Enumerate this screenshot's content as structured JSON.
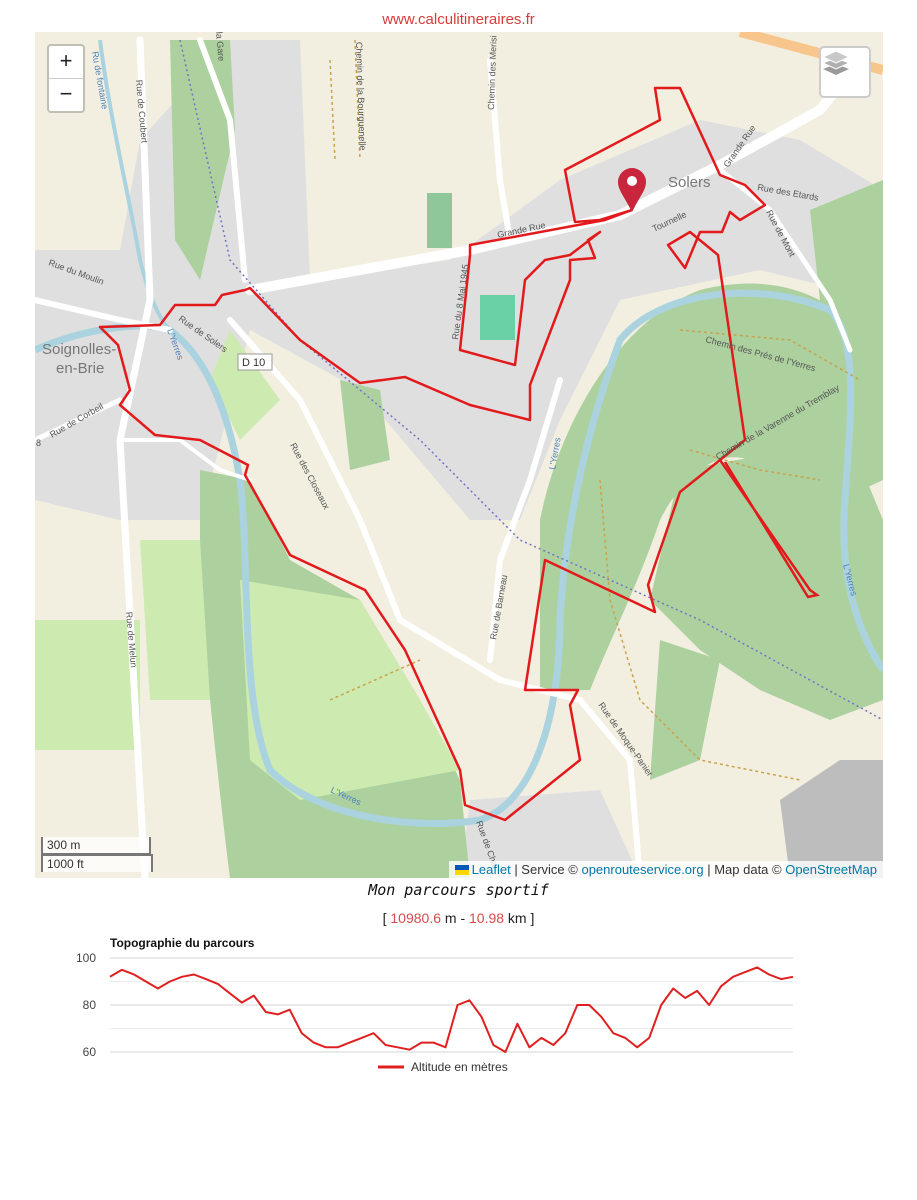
{
  "header": {
    "site": "www.calculitineraires.fr"
  },
  "map": {
    "controls": {
      "zoom_in": "+",
      "zoom_out": "−",
      "layers_icon": "layers-icon"
    },
    "scale": {
      "metric": "300 m",
      "imperial": "1000 ft"
    },
    "attribution": {
      "leaflet": "Leaflet",
      "sep1": " | Service © ",
      "service": "openrouteservice.org",
      "sep2": " | Map data © ",
      "osm": "OpenStreetMap"
    },
    "places": {
      "solers": "Solers",
      "soignolles1": "Soignolles-",
      "soignolles2": "en-Brie"
    },
    "streets": {
      "fontaine": "Ru de fontaine",
      "coubert": "Rue de Coubert",
      "gare": "la Gare",
      "bourguenelle": "Chemin de la Bourguenelle",
      "merisiers": "Chemin des Merisi",
      "grande_rue": "Grande Rue",
      "grande_rue2": "Grande Rue",
      "etards": "Rue des Etards",
      "mont": "Rue de Mont",
      "tournelle": "Tournelle",
      "moulin": "Rue du Moulin",
      "solers_rue": "Rue de Solers",
      "d10": "D 10",
      "corbeil": "Rue de Corbeil",
      "mai": "Rue du 8 Mai 1945",
      "prieure": "Chemin des Prés de l'Yerres",
      "varenne": "Chemin de la Varenne du Tremblay",
      "closeaux": "Rue des Closeaux",
      "barneau": "Rue de Barneau",
      "melun": "Rue de Melun",
      "yerres1": "L'Yerres",
      "yerres2": "L'Yerres",
      "yerres3": "L'Yerres",
      "yerres4": "L'Yerres",
      "moque": "Rue de Moque-Panier",
      "cha": "Rue de Cha",
      "eight": "8"
    },
    "route_color": "#e31a1c",
    "marker_color": "#c9253c"
  },
  "route": {
    "title": "Mon parcours sportif",
    "open": "[ ",
    "meters": "10980.6",
    "m_unit": " m - ",
    "km": "10.98",
    "km_unit": " km ]"
  },
  "chart_data": {
    "type": "line",
    "title": "Topographie du parcours",
    "ylim": [
      60,
      100
    ],
    "yticks": [
      60,
      80,
      100
    ],
    "grid": true,
    "legend": "bottom",
    "series": [
      {
        "name": "Altitude en mètres",
        "color": "#e02020",
        "values": [
          92,
          95,
          93,
          90,
          87,
          90,
          92,
          93,
          91,
          89,
          85,
          81,
          84,
          77,
          76,
          78,
          68,
          64,
          62,
          62,
          64,
          66,
          68,
          63,
          62,
          61,
          64,
          64,
          62,
          80,
          82,
          75,
          63,
          60,
          72,
          62,
          66,
          63,
          68,
          80,
          80,
          75,
          68,
          66,
          62,
          66,
          80,
          87,
          83,
          86,
          80,
          88,
          92,
          94,
          96,
          93,
          91,
          92
        ]
      }
    ]
  }
}
